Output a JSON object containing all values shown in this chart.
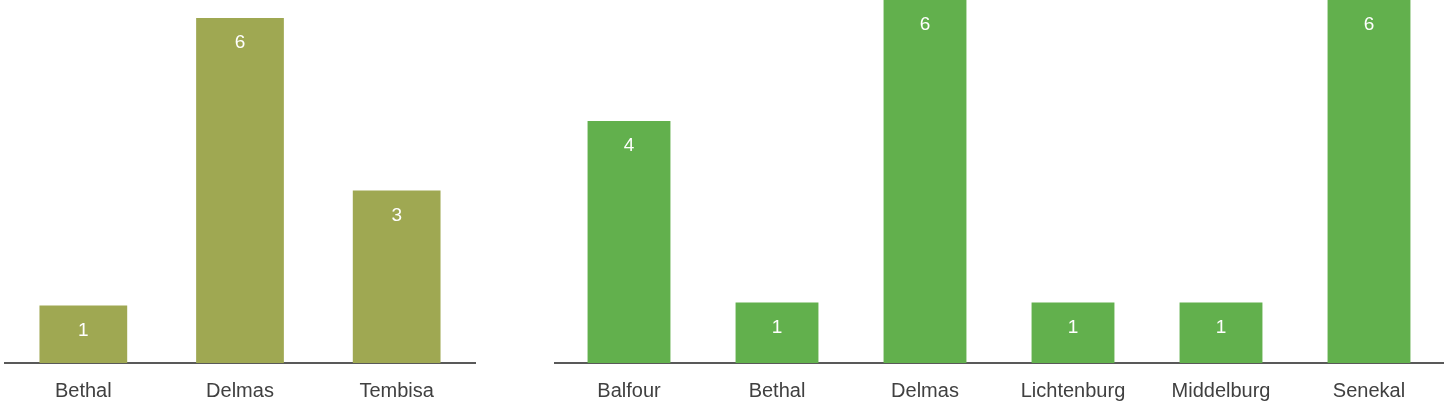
{
  "chart_data": [
    {
      "type": "bar",
      "categories": [
        "Bethal",
        "Delmas",
        "Tembisa"
      ],
      "values": [
        1,
        6,
        3
      ],
      "color": "#9fa852",
      "data_labels": true
    },
    {
      "type": "bar",
      "categories": [
        "Balfour",
        "Bethal",
        "Delmas",
        "Lichtenburg",
        "Middelburg",
        "Senekal"
      ],
      "values": [
        4,
        1,
        6,
        1,
        1,
        6
      ],
      "color": "#62b04d",
      "data_labels": true
    }
  ]
}
